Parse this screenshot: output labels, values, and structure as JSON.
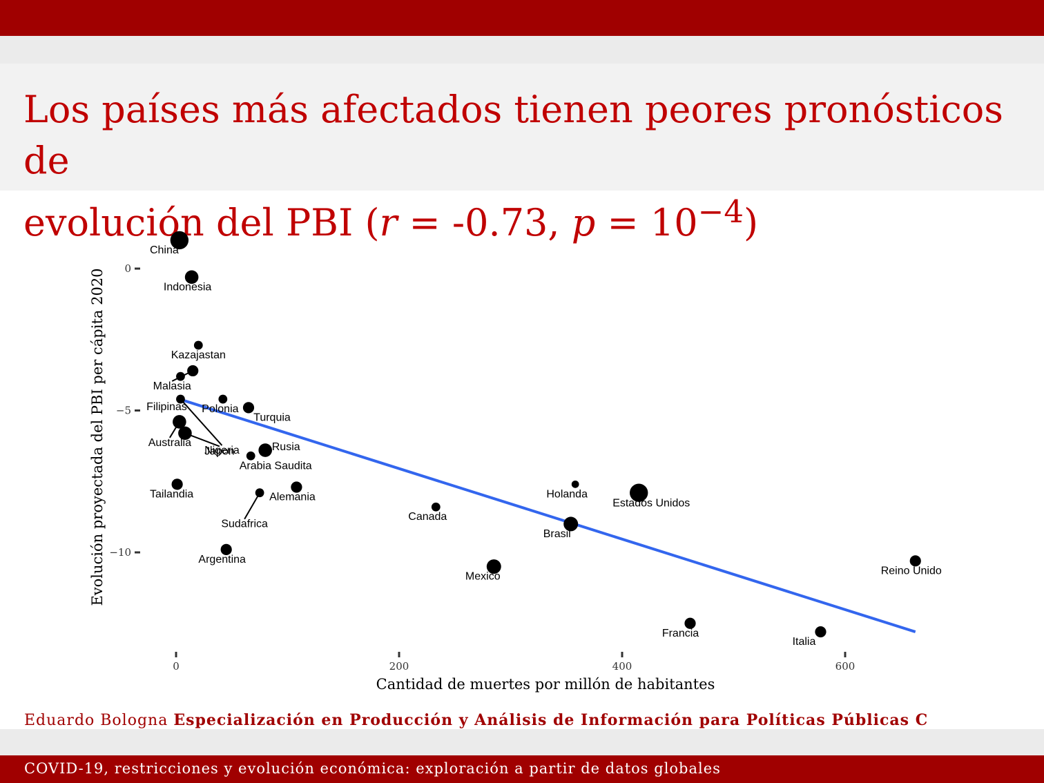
{
  "title": {
    "line1": "Los países más afectados tienen peores pronósticos de",
    "line2_start": "evolución del PBI (",
    "r_symbol": "r",
    "r_eq": " = -0.73, ",
    "p_symbol": "p",
    "p_eq": " = 10",
    "p_exp": "−4",
    "close": ")"
  },
  "footer": {
    "author": "Eduardo Bologna",
    "program": "Especialización en Producción y Análisis de Información para Políticas Públicas C",
    "subtitle": "COVID-19, restricciones y evolución económica: exploración a partir de datos globales"
  },
  "colors": {
    "header_red": "#a00000",
    "title_red": "#c00000",
    "trend_line": "#3366ee",
    "points": "#000000"
  },
  "chart_data": {
    "type": "scatter",
    "xlabel": "Cantidad de muertes por millón de habitantes",
    "ylabel": "Evolución proyectada del PBI per cápita 2020",
    "xlim": [
      -20,
      690
    ],
    "ylim": [
      -13.8,
      1.3
    ],
    "x_ticks": [
      0,
      200,
      400,
      600
    ],
    "y_ticks": [
      0,
      -5,
      -10
    ],
    "x_tick_labels": [
      "0",
      "200",
      "400",
      "600"
    ],
    "y_tick_labels": [
      "0",
      "−5",
      "−10"
    ],
    "grid": false,
    "trend_line": {
      "x": [
        3,
        663
      ],
      "y": [
        -4.6,
        -12.8
      ]
    },
    "points": [
      {
        "label": "China",
        "x": 3,
        "y": 1.0,
        "size": 3,
        "label_dx": -22,
        "label_dy": 14
      },
      {
        "label": "Indonesia",
        "x": 14,
        "y": -0.3,
        "size": 2,
        "label_dx": -6,
        "label_dy": 14
      },
      {
        "label": "Kazajastan",
        "x": 20,
        "y": -2.7,
        "size": 1,
        "label_dx": 0,
        "label_dy": 14
      },
      {
        "label": "Malasia",
        "x": 15,
        "y": -3.6,
        "size": 1.5,
        "label_dx": -30,
        "label_dy": 22,
        "leader": true
      },
      {
        "label": "Filipinas",
        "x": 4,
        "y": -3.8,
        "size": 1,
        "label_dx": -20,
        "label_dy": 44,
        "leader": false
      },
      {
        "label": "Polonia",
        "x": 42,
        "y": -4.6,
        "size": 1,
        "label_dx": -4,
        "label_dy": 14
      },
      {
        "label": "Turquia",
        "x": 65,
        "y": -4.9,
        "size": 1.5,
        "label_dx": 34,
        "label_dy": 14
      },
      {
        "label": "Nigeria",
        "x": 4,
        "y": -4.6,
        "size": 1,
        "label_dx": 60,
        "label_dy": 74,
        "leader": true
      },
      {
        "label": "Australia",
        "x": 3,
        "y": -5.4,
        "size": 2,
        "label_dx": -14,
        "label_dy": 30,
        "leader": true
      },
      {
        "label": "Japon",
        "x": 8,
        "y": -5.8,
        "size": 2,
        "label_dx": 50,
        "label_dy": 26,
        "leader": true
      },
      {
        "label": "Rusia",
        "x": 80,
        "y": -6.4,
        "size": 2,
        "label_dx": 30,
        "label_dy": -5
      },
      {
        "label": "Arabia Saudita",
        "x": 67,
        "y": -6.6,
        "size": 1,
        "label_dx": 36,
        "label_dy": 14
      },
      {
        "label": "Tailandia",
        "x": 1,
        "y": -7.6,
        "size": 1.5,
        "label_dx": -8,
        "label_dy": 14
      },
      {
        "label": "Alemania",
        "x": 108,
        "y": -7.7,
        "size": 1.5,
        "label_dx": -6,
        "label_dy": 14
      },
      {
        "label": "Sudafrica",
        "x": 75,
        "y": -7.9,
        "size": 1,
        "label_dx": -22,
        "label_dy": 45,
        "leader": true
      },
      {
        "label": "Canada",
        "x": 233,
        "y": -8.4,
        "size": 1,
        "label_dx": -12,
        "label_dy": 14
      },
      {
        "label": "Holanda",
        "x": 358,
        "y": -7.6,
        "size": 0.7,
        "label_dx": -12,
        "label_dy": 14
      },
      {
        "label": "Estados Unidos",
        "x": 415,
        "y": -7.9,
        "size": 3,
        "label_dx": 18,
        "label_dy": 15
      },
      {
        "label": "Brasil",
        "x": 354,
        "y": -9.0,
        "size": 2.2,
        "label_dx": -20,
        "label_dy": 14
      },
      {
        "label": "Argentina",
        "x": 45,
        "y": -9.9,
        "size": 1.5,
        "label_dx": -6,
        "label_dy": 14
      },
      {
        "label": "Mexico",
        "x": 285,
        "y": -10.5,
        "size": 2.2,
        "label_dx": -16,
        "label_dy": 14
      },
      {
        "label": "Reino Unido",
        "x": 663,
        "y": -10.3,
        "size": 1.5,
        "label_dx": -6,
        "label_dy": 14
      },
      {
        "label": "Francia",
        "x": 461,
        "y": -12.5,
        "size": 1.5,
        "label_dx": -14,
        "label_dy": 14
      },
      {
        "label": "Italia",
        "x": 578,
        "y": -12.8,
        "size": 1.5,
        "label_dx": -24,
        "label_dy": 14
      }
    ]
  }
}
